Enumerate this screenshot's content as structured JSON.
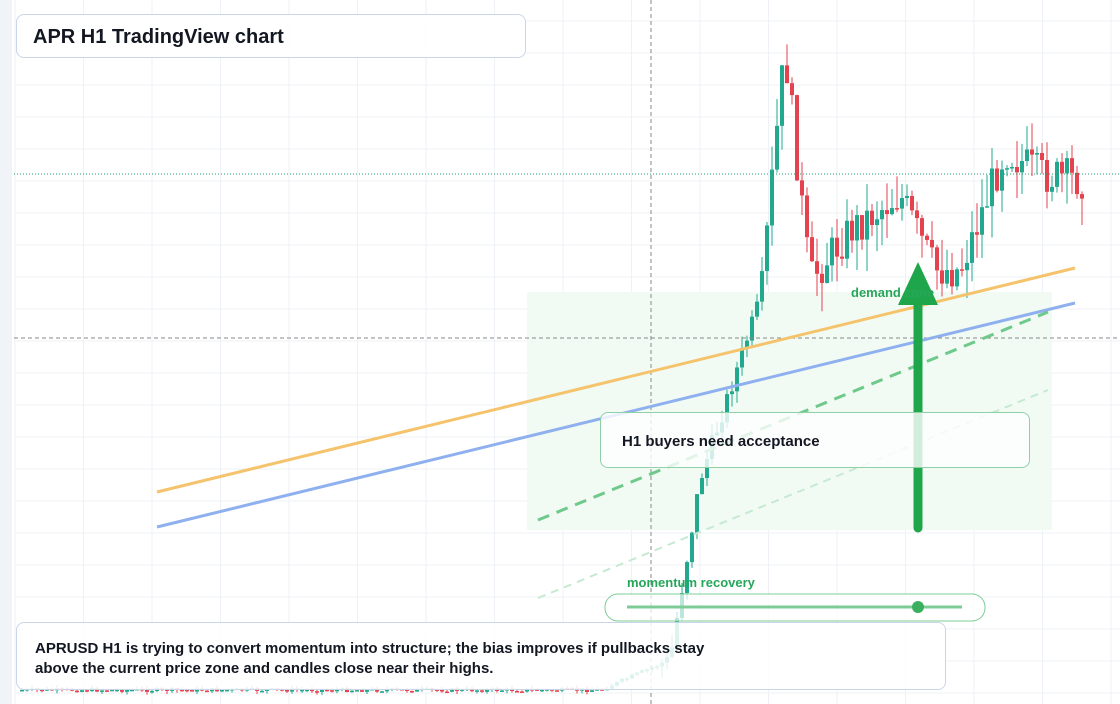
{
  "header": {
    "title": "APR H1 TradingView chart"
  },
  "annotations": {
    "zone": "demand zone",
    "callout": "H1 buyers need acceptance",
    "indicator": "momentum recovery"
  },
  "note": {
    "lines": [
      "APRUSD H1 is trying to convert momentum into structure; the bias improves if pullbacks stay",
      "above the current price zone and candles close near their highs."
    ]
  }
}
